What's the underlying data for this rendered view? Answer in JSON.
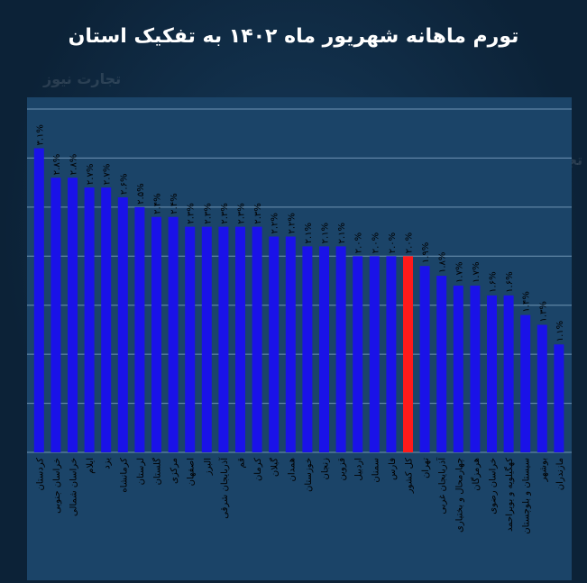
{
  "chart_data": {
    "type": "bar",
    "title": "تورم ماهانه شهریور ماه ۱۴۰۲ به تفکیک استان",
    "categories": [
      "کردستان",
      "خراسان جنوبی",
      "خراسان شمالی",
      "ایلام",
      "یزد",
      "کرمانشاه",
      "لرستان",
      "گلستان",
      "مرکزی",
      "اصفهان",
      "البرز",
      "آذربایجان شرقی",
      "قم",
      "کرمان",
      "گیلان",
      "همدان",
      "خوزستان",
      "زنجان",
      "قزوین",
      "اردبیل",
      "سمنان",
      "فارس",
      "کل کشور",
      "تهران",
      "آذربایجان غربی",
      "چهارمحال و بختیاری",
      "هرمزگان",
      "خراسان رضوی",
      "کهگیلویه و بویراحمد",
      "سیستان و بلوچستان",
      "بوشهر",
      "مازندران"
    ],
    "values": [
      3.1,
      2.8,
      2.8,
      2.7,
      2.7,
      2.6,
      2.5,
      2.4,
      2.4,
      2.3,
      2.3,
      2.3,
      2.3,
      2.3,
      2.2,
      2.2,
      2.1,
      2.1,
      2.1,
      2.0,
      2.0,
      2.0,
      2.0,
      1.9,
      1.8,
      1.7,
      1.7,
      1.6,
      1.6,
      1.4,
      1.3,
      1.1
    ],
    "value_labels": [
      "۳.۱%",
      "۲.۸%",
      "۲.۸%",
      "۲.۷%",
      "۲.۷%",
      "۲.۶%",
      "۲.۵%",
      "۲.۴%",
      "۲.۴%",
      "۲.۳%",
      "۲.۳%",
      "۲.۳%",
      "۲.۳%",
      "۲.۳%",
      "۲.۲%",
      "۲.۲%",
      "۲.۱%",
      "۲.۱%",
      "۲.۱%",
      "۲.۰%",
      "۲.۰%",
      "۲.۰%",
      "۲.۰%",
      "۱.۹%",
      "۱.۸%",
      "۱.۷%",
      "۱.۷%",
      "۱.۶%",
      "۱.۶%",
      "۱.۴%",
      "۱.۳%",
      "۱.۱%"
    ],
    "highlight_category": "کل کشور",
    "ylim": [
      0,
      3.5
    ],
    "grid": true,
    "colors": {
      "bar": "#1a12e8",
      "highlight": "#ff1a1a",
      "grid": "#6f93b3",
      "text": "#000000"
    }
  },
  "watermark": "تجارت نیوز"
}
